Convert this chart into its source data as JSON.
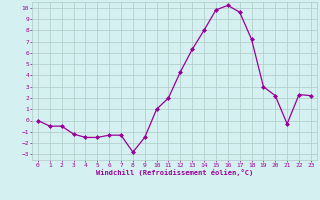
{
  "x": [
    0,
    1,
    2,
    3,
    4,
    5,
    6,
    7,
    8,
    9,
    10,
    11,
    12,
    13,
    14,
    15,
    16,
    17,
    18,
    19,
    20,
    21,
    22,
    23
  ],
  "y": [
    0,
    -0.5,
    -0.5,
    -1.2,
    -1.5,
    -1.5,
    -1.3,
    -1.3,
    -2.8,
    -1.5,
    1.0,
    2.0,
    4.3,
    6.3,
    8.0,
    9.8,
    10.2,
    9.6,
    7.2,
    3.0,
    2.2,
    -0.3,
    2.3,
    2.2
  ],
  "line_color": "#990099",
  "marker": "D",
  "marker_size": 2,
  "xlim": [
    -0.5,
    23.5
  ],
  "ylim": [
    -3.5,
    10.5
  ],
  "yticks": [
    -3,
    -2,
    -1,
    0,
    1,
    2,
    3,
    4,
    5,
    6,
    7,
    8,
    9,
    10
  ],
  "xticks": [
    0,
    1,
    2,
    3,
    4,
    5,
    6,
    7,
    8,
    9,
    10,
    11,
    12,
    13,
    14,
    15,
    16,
    17,
    18,
    19,
    20,
    21,
    22,
    23
  ],
  "bg_color": "#d4f0f0",
  "grid_color": "#b0c8c8",
  "label_color": "#990099",
  "tick_color": "#990099",
  "xlabel": "Windchill (Refroidissement éolien,°C)",
  "tick_fontsize": 4.5,
  "xlabel_fontsize": 5.0
}
